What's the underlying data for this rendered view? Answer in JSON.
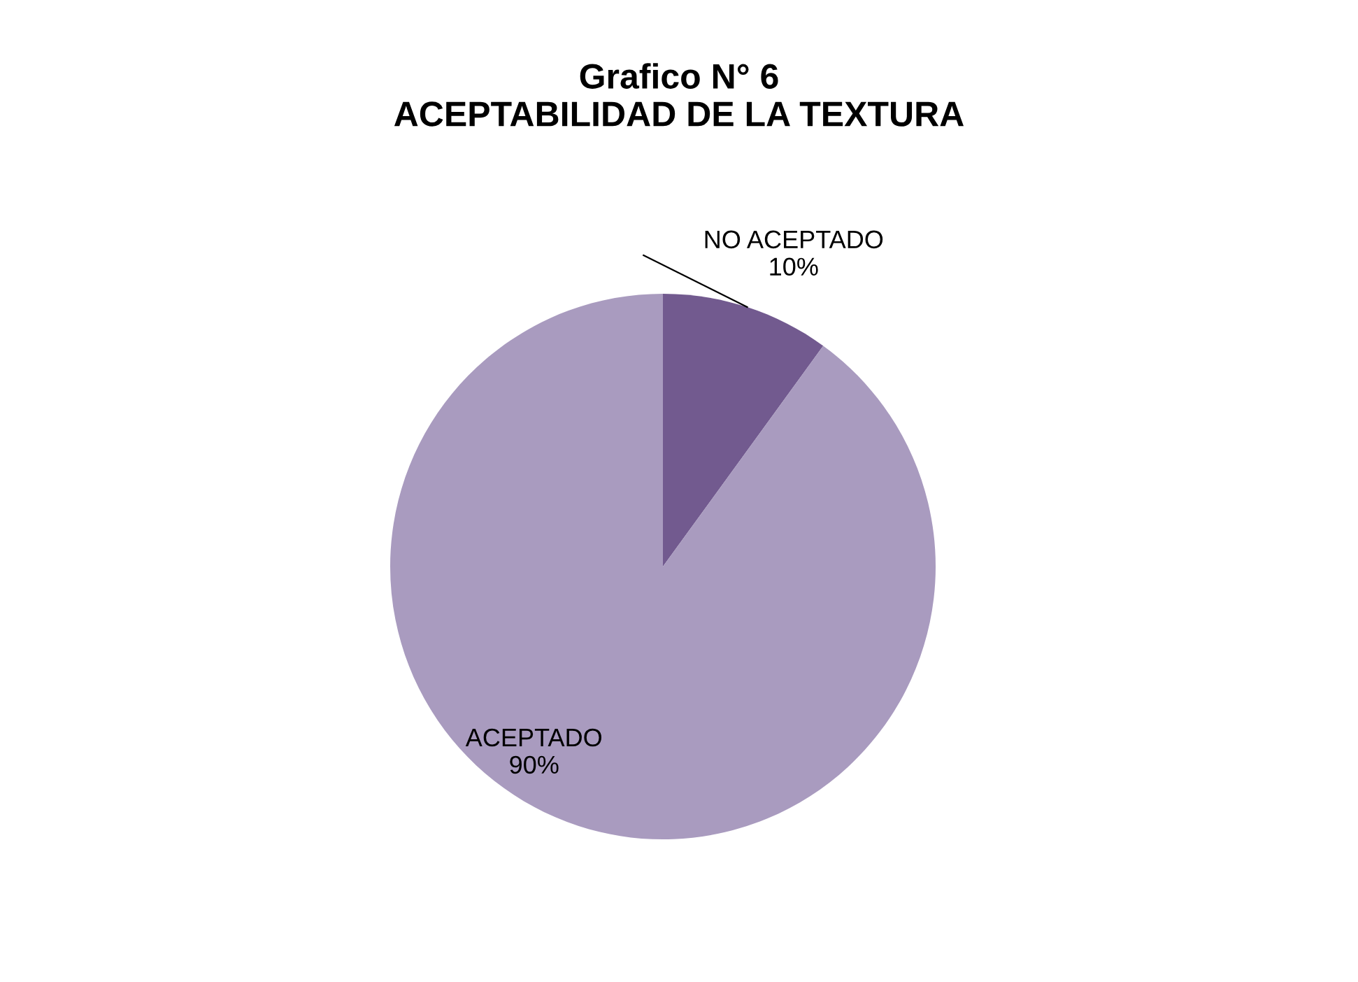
{
  "chart_data": {
    "type": "pie",
    "title": "Grafico N° 6\nACEPTABILIDAD DE LA TEXTURA",
    "categories": [
      "NO ACEPTADO",
      "ACEPTADO"
    ],
    "values": [
      10,
      90
    ],
    "value_labels": [
      "10%",
      "90%"
    ],
    "colors": [
      "#725a8f",
      "#a99bbf"
    ]
  }
}
